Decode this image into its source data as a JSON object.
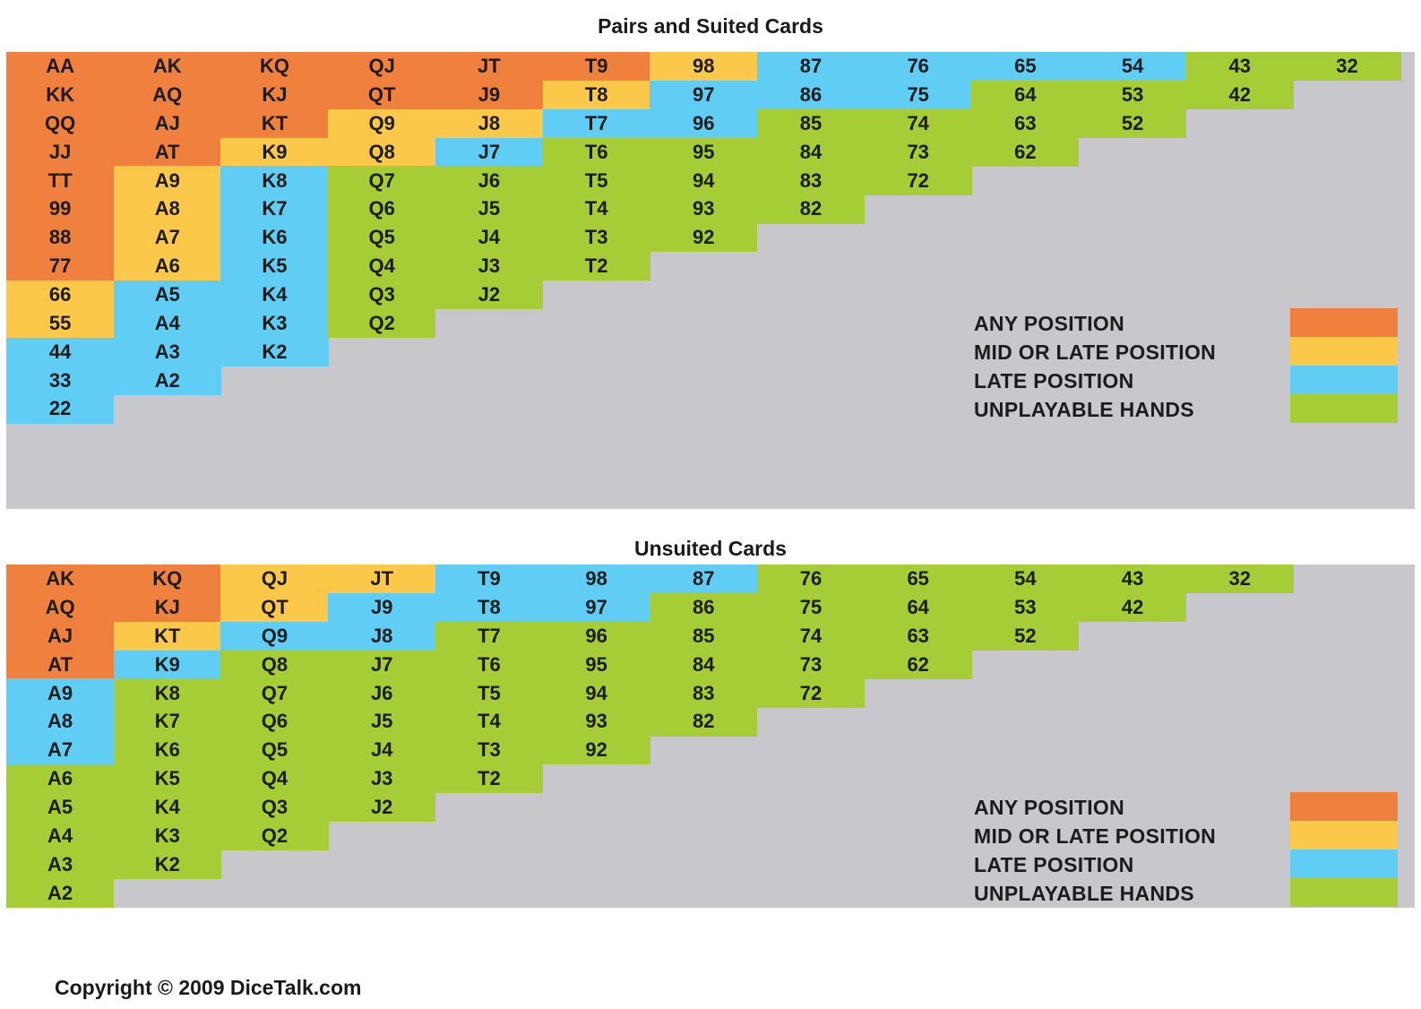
{
  "colors": {
    "any": "#f0803e",
    "mid": "#fbc849",
    "late": "#5fcdf4",
    "unplayable": "#a6cc36",
    "background": "#c8c7cc"
  },
  "legend_items": [
    {
      "key": "any",
      "label": "ANY POSITION"
    },
    {
      "key": "mid",
      "label": "MID OR LATE POSITION"
    },
    {
      "key": "late",
      "label": "LATE POSITION"
    },
    {
      "key": "unplayable",
      "label": "UNPLAYABLE HANDS"
    }
  ],
  "suited": {
    "title": "Pairs and Suited Cards",
    "columns": [
      [
        "AA:any",
        "KK:any",
        "QQ:any",
        "JJ:any",
        "TT:any",
        "99:any",
        "88:any",
        "77:any",
        "66:mid",
        "55:mid",
        "44:late",
        "33:late",
        "22:late"
      ],
      [
        "AK:any",
        "AQ:any",
        "AJ:any",
        "AT:any",
        "A9:mid",
        "A8:mid",
        "A7:mid",
        "A6:mid",
        "A5:late",
        "A4:late",
        "A3:late",
        "A2:late"
      ],
      [
        "KQ:any",
        "KJ:any",
        "KT:any",
        "K9:mid",
        "K8:late",
        "K7:late",
        "K6:late",
        "K5:late",
        "K4:late",
        "K3:late",
        "K2:late"
      ],
      [
        "QJ:any",
        "QT:any",
        "Q9:mid",
        "Q8:mid",
        "Q7:unplayable",
        "Q6:unplayable",
        "Q5:unplayable",
        "Q4:unplayable",
        "Q3:unplayable",
        "Q2:unplayable"
      ],
      [
        "JT:any",
        "J9:any",
        "J8:mid",
        "J7:late",
        "J6:unplayable",
        "J5:unplayable",
        "J4:unplayable",
        "J3:unplayable",
        "J2:unplayable"
      ],
      [
        "T9:any",
        "T8:mid",
        "T7:late",
        "T6:unplayable",
        "T5:unplayable",
        "T4:unplayable",
        "T3:unplayable",
        "T2:unplayable"
      ],
      [
        "98:mid",
        "97:late",
        "96:late",
        "95:unplayable",
        "94:unplayable",
        "93:unplayable",
        "92:unplayable"
      ],
      [
        "87:late",
        "86:late",
        "85:unplayable",
        "84:unplayable",
        "83:unplayable",
        "82:unplayable"
      ],
      [
        "76:late",
        "75:late",
        "74:unplayable",
        "73:unplayable",
        "72:unplayable"
      ],
      [
        "65:late",
        "64:unplayable",
        "63:unplayable",
        "62:unplayable"
      ],
      [
        "54:late",
        "53:unplayable",
        "52:unplayable"
      ],
      [
        "43:unplayable",
        "42:unplayable"
      ],
      [
        "32:unplayable"
      ]
    ]
  },
  "unsuited": {
    "title": "Unsuited Cards",
    "columns": [
      [
        "AK:any",
        "AQ:any",
        "AJ:any",
        "AT:any",
        "A9:late",
        "A8:late",
        "A7:late",
        "A6:unplayable",
        "A5:unplayable",
        "A4:unplayable",
        "A3:unplayable",
        "A2:unplayable"
      ],
      [
        "KQ:any",
        "KJ:any",
        "KT:mid",
        "K9:late",
        "K8:unplayable",
        "K7:unplayable",
        "K6:unplayable",
        "K5:unplayable",
        "K4:unplayable",
        "K3:unplayable",
        "K2:unplayable"
      ],
      [
        "QJ:mid",
        "QT:mid",
        "Q9:late",
        "Q8:unplayable",
        "Q7:unplayable",
        "Q6:unplayable",
        "Q5:unplayable",
        "Q4:unplayable",
        "Q3:unplayable",
        "Q2:unplayable"
      ],
      [
        "JT:mid",
        "J9:late",
        "J8:late",
        "J7:unplayable",
        "J6:unplayable",
        "J5:unplayable",
        "J4:unplayable",
        "J3:unplayable",
        "J2:unplayable"
      ],
      [
        "T9:late",
        "T8:late",
        "T7:unplayable",
        "T6:unplayable",
        "T5:unplayable",
        "T4:unplayable",
        "T3:unplayable",
        "T2:unplayable"
      ],
      [
        "98:late",
        "97:late",
        "96:unplayable",
        "95:unplayable",
        "94:unplayable",
        "93:unplayable",
        "92:unplayable"
      ],
      [
        "87:late",
        "86:unplayable",
        "85:unplayable",
        "84:unplayable",
        "83:unplayable",
        "82:unplayable"
      ],
      [
        "76:unplayable",
        "75:unplayable",
        "74:unplayable",
        "73:unplayable",
        "72:unplayable"
      ],
      [
        "65:unplayable",
        "64:unplayable",
        "63:unplayable",
        "62:unplayable"
      ],
      [
        "54:unplayable",
        "53:unplayable",
        "52:unplayable"
      ],
      [
        "43:unplayable",
        "42:unplayable"
      ],
      [
        "32:unplayable"
      ]
    ]
  },
  "copyright": "Copyright © 2009 DiceTalk.com"
}
